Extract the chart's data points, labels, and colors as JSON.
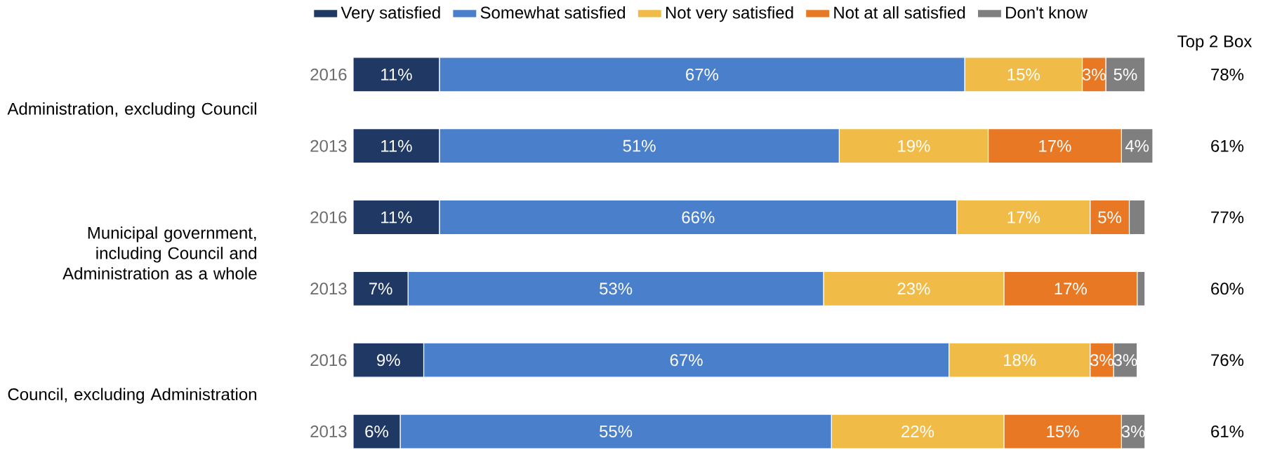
{
  "chart_data": {
    "type": "bar",
    "orientation": "horizontal",
    "stacked": true,
    "legend": "top",
    "tick_labels": "y",
    "categories": [
      "2016",
      "2013",
      "2016",
      "2013",
      "2016",
      "2013"
    ],
    "series": [
      {
        "name": "Very satisfied",
        "color": "#1f3864",
        "values": [
          11,
          11,
          11,
          7,
          9,
          6
        ],
        "value_labels": [
          "11%",
          "11%",
          "11%",
          "7%",
          "9%",
          "6%"
        ]
      },
      {
        "name": "Somewhat satisfied",
        "color": "#4a7fcb",
        "values": [
          67,
          51,
          66,
          53,
          67,
          55
        ],
        "value_labels": [
          "67%",
          "51%",
          "66%",
          "53%",
          "67%",
          "55%"
        ]
      },
      {
        "name": "Not very satisfied",
        "color": "#f0bb46",
        "values": [
          15,
          19,
          17,
          23,
          18,
          22
        ],
        "value_labels": [
          "15%",
          "19%",
          "17%",
          "23%",
          "18%",
          "22%"
        ]
      },
      {
        "name": "Not at all satisfied",
        "color": "#e87823",
        "values": [
          3,
          17,
          5,
          17,
          3,
          15
        ],
        "value_labels": [
          "3%",
          "17%",
          "5%",
          "17%",
          "3%",
          "15%"
        ]
      },
      {
        "name": "Don't know",
        "color": "#7f7f7f",
        "values": [
          5,
          4,
          2,
          1,
          3,
          3
        ],
        "value_labels": [
          "5%",
          "4%",
          null,
          null,
          "3%",
          "3%"
        ]
      }
    ],
    "annotations": [
      "Administration, excluding Council",
      "Municipal government, including Council and Administration as a whole",
      "Council, excluding Administration",
      "Top 2 Box",
      "78%",
      "61%",
      "77%",
      "60%",
      "76%",
      "61%"
    ]
  }
}
